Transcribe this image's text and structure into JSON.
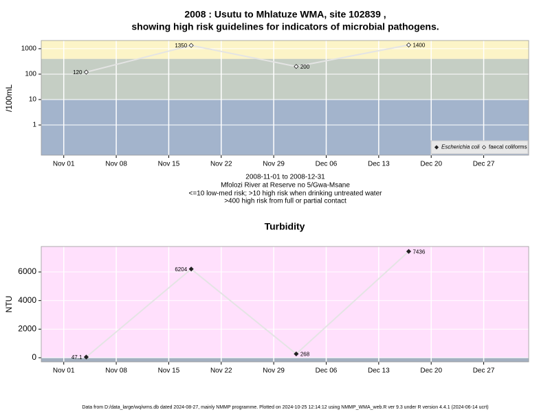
{
  "chart_data": [
    {
      "type": "line",
      "title": [
        "2008 : Usutu to Mhlatuze WMA, site 102839 ,",
        "showing high risk guidelines for indicators of microbial pathogens."
      ],
      "subtitle": [
        "2008-11-01 to 2008-12-31",
        "Mfolozi River at Reserve no 5/Gwa-Msane",
        "<=10 low-med risk; >10 high risk when drinking untreated water",
        ">400 high risk from full or partial contact"
      ],
      "y_label": "/100mL",
      "x": [
        "2008-11-04",
        "2008-11-18",
        "2008-12-02",
        "2008-12-17"
      ],
      "series": [
        {
          "name": "Escherichia coli",
          "color": "#222222",
          "marker": "filled",
          "values": [
            null,
            null,
            null,
            null
          ]
        },
        {
          "name": "faecal coliforms",
          "color": "#222222",
          "marker": "open",
          "values": [
            120,
            1350,
            200,
            1400
          ]
        }
      ],
      "line_color": "#e4e4e4",
      "log_y": true,
      "ylim": [
        0.065,
        2100
      ],
      "yticks": [
        1,
        10,
        100,
        1000
      ],
      "xlim": [
        "2008-10-29",
        "2009-01-02"
      ],
      "xticks": [
        {
          "value": "2008-11-01",
          "label": "Nov 01"
        },
        {
          "value": "2008-11-08",
          "label": "Nov 08"
        },
        {
          "value": "2008-11-15",
          "label": "Nov 15"
        },
        {
          "value": "2008-11-22",
          "label": "Nov 22"
        },
        {
          "value": "2008-11-29",
          "label": "Nov 29"
        },
        {
          "value": "2008-12-06",
          "label": "Dec 06"
        },
        {
          "value": "2008-12-13",
          "label": "Dec 13"
        },
        {
          "value": "2008-12-20",
          "label": "Dec 20"
        },
        {
          "value": "2008-12-27",
          "label": "Dec 27"
        }
      ],
      "bands": [
        {
          "from": 0.065,
          "to": 10,
          "color": "#a3b4cc"
        },
        {
          "from": 10,
          "to": 400,
          "color": "#c5cec4"
        },
        {
          "from": 400,
          "to": 2100,
          "color": "#fcf4c7"
        }
      ],
      "grid": true,
      "legend": "bottom-right"
    },
    {
      "type": "line",
      "title": "Turbidity",
      "y_label": "NTU",
      "x": [
        "2008-11-04",
        "2008-11-18",
        "2008-12-02",
        "2008-12-17"
      ],
      "values": [
        47.1,
        6204,
        268,
        7436
      ],
      "marker": "filled",
      "color": "#222222",
      "line_color": "#e4e4e4",
      "log_y": false,
      "ylim": [
        -290,
        7780
      ],
      "yticks": [
        0,
        2000,
        4000,
        6000
      ],
      "xlim": [
        "2008-10-29",
        "2009-01-02"
      ],
      "xticks": [
        {
          "value": "2008-11-01",
          "label": "Nov 01"
        },
        {
          "value": "2008-11-08",
          "label": "Nov 08"
        },
        {
          "value": "2008-11-15",
          "label": "Nov 15"
        },
        {
          "value": "2008-11-22",
          "label": "Nov 22"
        },
        {
          "value": "2008-11-29",
          "label": "Nov 29"
        },
        {
          "value": "2008-12-06",
          "label": "Dec 06"
        },
        {
          "value": "2008-12-13",
          "label": "Dec 13"
        },
        {
          "value": "2008-12-20",
          "label": "Dec 20"
        },
        {
          "value": "2008-12-27",
          "label": "Dec 27"
        }
      ],
      "bands": [
        {
          "from": -290,
          "to": 0,
          "color": "#a3b0c0"
        },
        {
          "from": 0,
          "to": 7780,
          "color": "#ffe0fc"
        }
      ],
      "grid": true
    }
  ],
  "footer": "Data from D:/data_large/wq/wms.db dated 2024-08-27, mainly NMMP programme. Plotted on 2024-10-25 12:14:12 using NMMP_WMA_web.R ver 9.3 under R version 4.4.1 (2024-06-14 ucrt)"
}
